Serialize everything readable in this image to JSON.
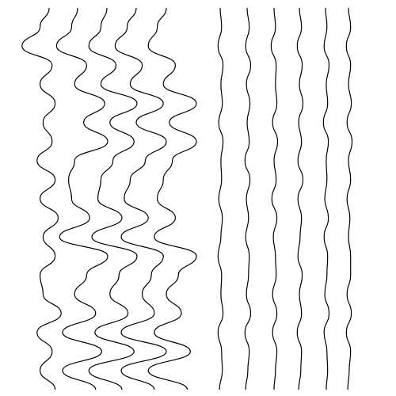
{
  "chart_data": {
    "type": "wiggle",
    "color": "#000000",
    "series": [
      {
        "values": [
          0,
          -0.3,
          -0.9,
          0.1,
          -0.3,
          0.2,
          -0.2,
          0.1,
          -0.4,
          0.2,
          -0.3,
          0.3,
          -0.2,
          0.2,
          -0.3,
          -0.2,
          0.4,
          -0.4,
          0.1,
          -0.3,
          0.2
        ]
      },
      {
        "values": [
          0,
          -0.2,
          -0.7,
          0.3,
          -0.1,
          0.9,
          0.2,
          1.0,
          -0.1,
          -0.3,
          -0.2,
          0.4,
          -0.6,
          1.0,
          0.3,
          -0.1,
          0.6,
          -0.5,
          0.8,
          -0.5,
          0.6
        ]
      },
      {
        "values": [
          0,
          -0.2,
          -0.6,
          0.3,
          -0.2,
          1.0,
          0.1,
          0.9,
          0.2,
          -0.2,
          -0.3,
          0.5,
          -0.5,
          1.0,
          0.4,
          0.1,
          0.7,
          -0.4,
          0.9,
          -0.6,
          0.5
        ]
      },
      {
        "values": [
          0,
          -0.3,
          -0.7,
          0.2,
          -0.2,
          0.9,
          0.0,
          1.0,
          0.3,
          -0.2,
          -0.4,
          0.4,
          -0.5,
          0.9,
          0.5,
          0.2,
          0.6,
          -0.5,
          1.0,
          -0.5,
          0.6
        ]
      },
      {
        "values": [
          0,
          -0.3,
          -0.6,
          0.3,
          -0.1,
          1.0,
          0.1,
          1.0,
          0.2,
          -0.1,
          -0.3,
          0.3,
          -0.4,
          1.0,
          0.4,
          0.0,
          0.5,
          -0.4,
          0.8,
          -0.6,
          0.7
        ]
      },
      {
        "values": [
          0,
          0.2,
          -0.3,
          0.4,
          0.1,
          0.3,
          -0.2,
          0.4,
          0.1,
          0.2,
          -0.2,
          0.3,
          0.1,
          -0.3,
          0.2,
          0.1,
          0.4,
          -0.3,
          0.2,
          0.3,
          -0.1
        ]
      },
      {
        "values": [
          0,
          0.3,
          -0.2,
          0.5,
          -0.1,
          0.4,
          0.0,
          0.3,
          -0.3,
          0.4,
          -0.1,
          0.2,
          -0.2,
          0.3,
          0.2,
          -0.1,
          0.5,
          -0.3,
          0.3,
          0.1,
          -0.2
        ]
      },
      {
        "values": [
          0,
          0.2,
          -0.4,
          0.3,
          0.2,
          0.4,
          -0.2,
          0.5,
          0.0,
          0.3,
          -0.3,
          0.4,
          -0.1,
          0.2,
          0.3,
          -0.2,
          0.4,
          -0.2,
          0.4,
          0.2,
          0.0
        ]
      },
      {
        "values": [
          0,
          0.3,
          -0.3,
          0.4,
          0.0,
          0.5,
          -0.1,
          0.3,
          -0.2,
          0.5,
          -0.2,
          0.3,
          0.1,
          -0.2,
          0.4,
          0.0,
          0.3,
          -0.3,
          0.3,
          0.2,
          -0.1
        ]
      },
      {
        "values": [
          0,
          0.2,
          -0.2,
          0.5,
          0.1,
          0.3,
          -0.3,
          0.4,
          0.1,
          0.2,
          -0.1,
          0.4,
          -0.2,
          0.3,
          0.2,
          -0.1,
          0.5,
          -0.2,
          0.2,
          0.3,
          0.1
        ]
      },
      {
        "values": [
          0,
          0.3,
          -0.3,
          0.3,
          0.0,
          0.4,
          -0.2,
          0.5,
          0.0,
          0.3,
          -0.2,
          0.2,
          0.0,
          0.3,
          0.3,
          -0.2,
          0.4,
          -0.3,
          0.3,
          0.1,
          -0.1
        ]
      }
    ]
  }
}
